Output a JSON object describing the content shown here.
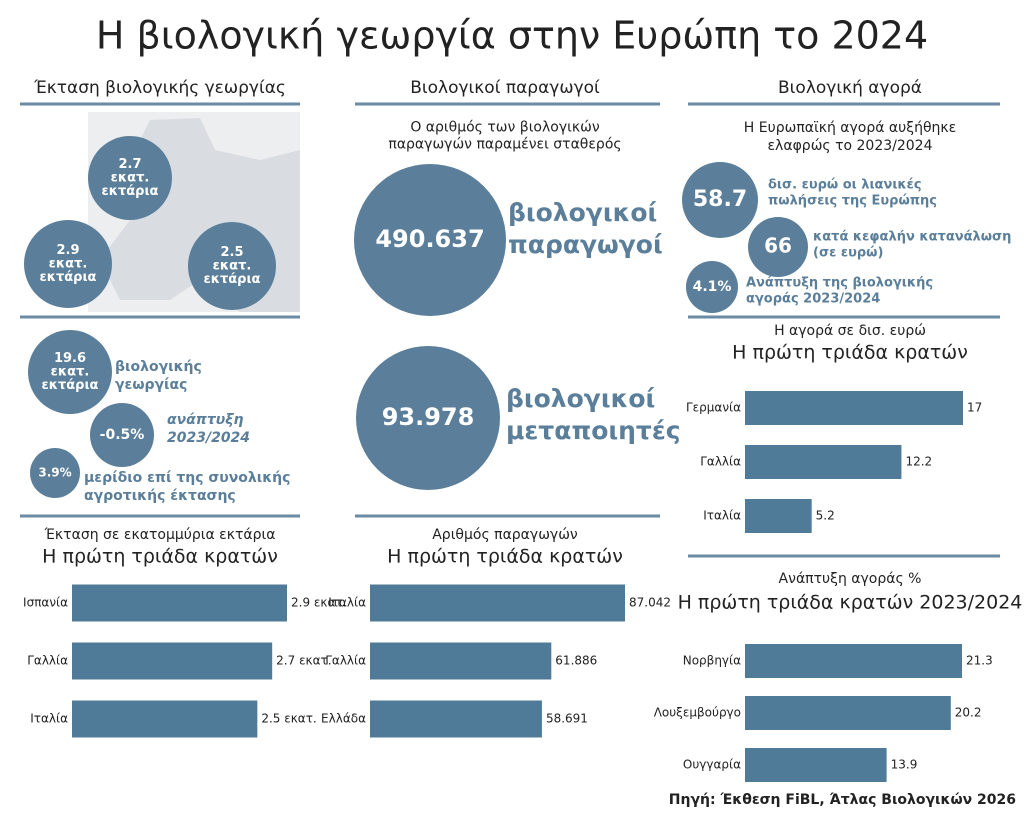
{
  "title": "Η βιολογική γεωργία στην Ευρώπη το 2024",
  "source": "Πηγή: Έκθεση FiBL, Άτλας Βιολογικών 2026",
  "area": {
    "heading": "Έκταση βιολογικής γεωργίας",
    "map_bubbles": [
      [
        "2.7",
        "εκατ.",
        "εκτάρια"
      ],
      [
        "2.9",
        "εκατ.",
        "εκτάρια"
      ],
      [
        "2.5",
        "εκατ.",
        "εκτάρια"
      ]
    ],
    "stats": [
      {
        "bubble": [
          "19.6",
          "εκατ.",
          "εκτάρια"
        ],
        "text": [
          "βιολογικής",
          "γεωργίας"
        ]
      },
      {
        "bubble": [
          "-0.5%"
        ],
        "text": [
          "ανάπτυξη",
          "2023/2024"
        ]
      },
      {
        "bubble": [
          "3.9%"
        ],
        "text": [
          "μερίδιο επί της συνολικής",
          "αγροτικής έκτασης"
        ]
      }
    ]
  },
  "producers": {
    "heading": "Βιολογικοί παραγωγοί",
    "intro": [
      "Ο αριθμός των βιολογικών",
      "παραγωγών παραμένει σταθερός"
    ],
    "stats": [
      {
        "bubble": [
          "490.637"
        ],
        "text": [
          "βιολογικοί",
          "παραγωγοί"
        ]
      },
      {
        "bubble": [
          "93.978"
        ],
        "text": [
          "βιολογικοί",
          "μεταποιητές"
        ]
      }
    ]
  },
  "market": {
    "heading": "Βιολογική αγορά",
    "intro": [
      "Η Ευρωπαϊκή αγορά αυξήθηκε",
      "ελαφρώς το 2023/2024"
    ],
    "stats": [
      {
        "bubble": [
          "58.7"
        ],
        "text": [
          "δισ. ευρώ οι λιανικές",
          "πωλήσεις της Ευρώπης"
        ]
      },
      {
        "bubble": [
          "66"
        ],
        "text": [
          "κατά κεφαλήν κατανάλωση",
          "(σε ευρώ)"
        ]
      },
      {
        "bubble": [
          "4.1%"
        ],
        "text": [
          "Ανάπτυξη της βιολογικής",
          "αγοράς 2023/2024"
        ]
      }
    ]
  },
  "chart_data": [
    {
      "type": "bar",
      "orientation": "horizontal",
      "subtitle": "Έκταση σε εκατομμύρια εκτάρια",
      "title": "Η πρώτη τριάδα κρατών",
      "categories": [
        "Ισπανία",
        "Γαλλία",
        "Ιταλία"
      ],
      "values": [
        2.9,
        2.7,
        2.5
      ],
      "value_labels": [
        "2.9 εκατ.",
        "2.7 εκατ.",
        "2.5 εκατ."
      ],
      "color": "#4f7b99"
    },
    {
      "type": "bar",
      "orientation": "horizontal",
      "subtitle": "Αριθμός παραγωγών",
      "title": "Η πρώτη τριάδα κρατών",
      "categories": [
        "Ιταλία",
        "Γαλλία",
        "Ελλάδα"
      ],
      "values": [
        87042,
        61886,
        58691
      ],
      "value_labels": [
        "87.042",
        "61.886",
        "58.691"
      ],
      "color": "#4f7b99"
    },
    {
      "type": "bar",
      "orientation": "horizontal",
      "subtitle": "Η αγορά σε δισ. ευρώ",
      "title": "Η πρώτη τριάδα κρατών",
      "categories": [
        "Γερμανία",
        "Γαλλία",
        "Ιταλία"
      ],
      "values": [
        17,
        12.2,
        5.2
      ],
      "color": "#4f7b99"
    },
    {
      "type": "bar",
      "orientation": "horizontal",
      "subtitle": "Ανάπτυξη αγοράς %",
      "title": "Η πρώτη τριάδα κρατών 2023/2024",
      "categories": [
        "Νορβηγία",
        "Λουξεμβούργο",
        "Ουγγαρία"
      ],
      "values": [
        21.3,
        20.2,
        13.9
      ],
      "color": "#4f7b99"
    }
  ]
}
